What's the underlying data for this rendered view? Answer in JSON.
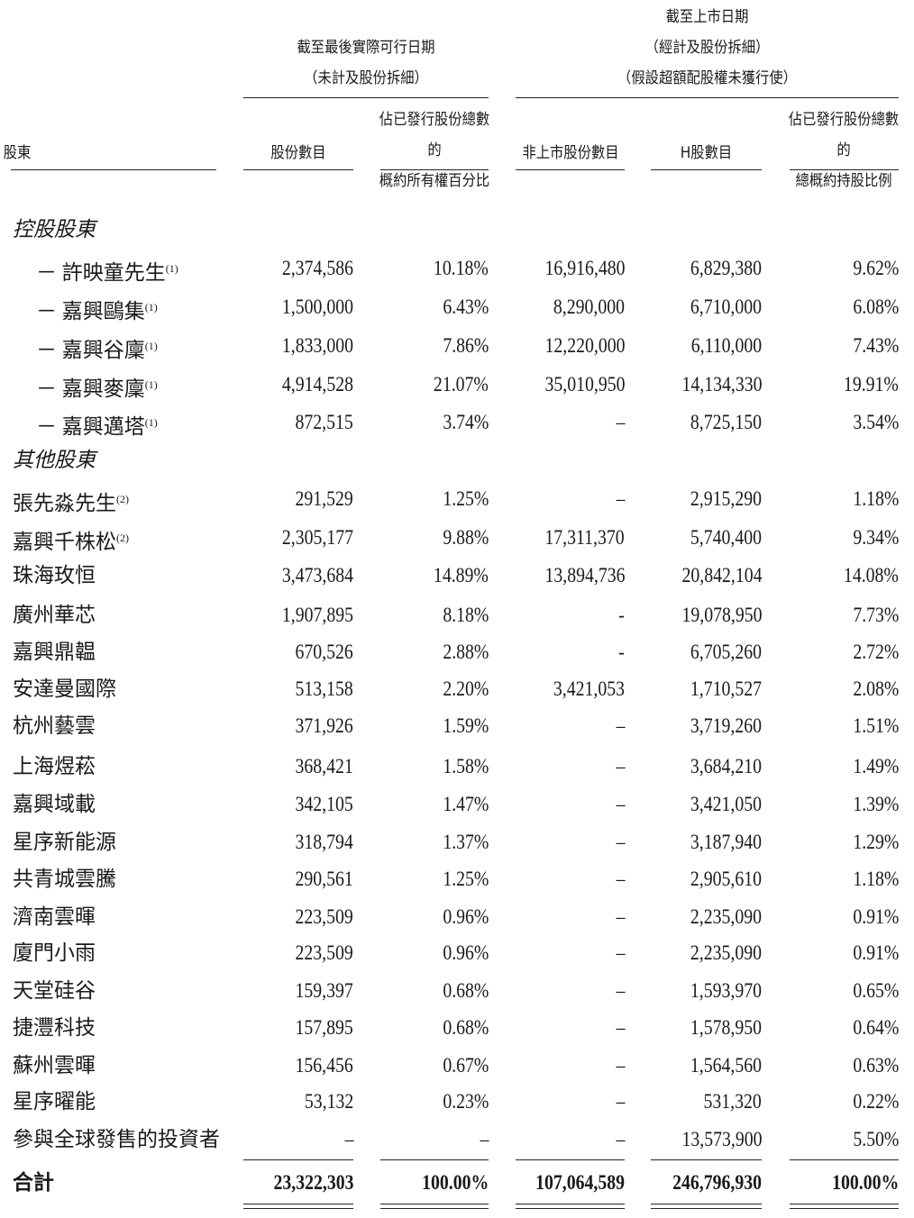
{
  "header": {
    "group1": {
      "line1": "截至最後實際可行日期",
      "line2": "（未計及股份拆細）"
    },
    "group2": {
      "line1": "截至上市日期",
      "line2": "（經計及股份拆細）",
      "line3": "（假設超額配股權未獲行使）"
    },
    "columns": {
      "shareholder": "股東",
      "c1": "股份數目",
      "c2a": "佔已發行股份總數的",
      "c2b": "概約所有權百分比",
      "c3": "非上市股份數目",
      "c4": "H股數目",
      "c5a": "佔已發行股份總數的",
      "c5b": "總概約持股比例"
    }
  },
  "rows": [
    {
      "type": "group",
      "name": "控股股東"
    },
    {
      "type": "sub",
      "name": "－ 許映童先生",
      "note": "(1)",
      "c1": "2,374,586",
      "c2": "10.18%",
      "c3": "16,916,480",
      "c4": "6,829,380",
      "c5": "9.62%"
    },
    {
      "type": "sub",
      "name": "－ 嘉興鷗集",
      "note": "(1)",
      "c1": "1,500,000",
      "c2": "6.43%",
      "c3": "8,290,000",
      "c4": "6,710,000",
      "c5": "6.08%"
    },
    {
      "type": "sub",
      "name": "－ 嘉興谷廩",
      "note": "(1)",
      "c1": "1,833,000",
      "c2": "7.86%",
      "c3": "12,220,000",
      "c4": "6,110,000",
      "c5": "7.43%"
    },
    {
      "type": "sub",
      "name": "－ 嘉興麥廩",
      "note": "(1)",
      "c1": "4,914,528",
      "c2": "21.07%",
      "c3": "35,010,950",
      "c4": "14,134,330",
      "c5": "19.91%"
    },
    {
      "type": "sub",
      "name": "－ 嘉興邁塔",
      "note": "(1)",
      "c1": "872,515",
      "c2": "3.74%",
      "c3": "–",
      "c4": "8,725,150",
      "c5": "3.54%"
    },
    {
      "type": "group",
      "name": "其他股東"
    },
    {
      "type": "item",
      "name": "張先淼先生",
      "note": "(2)",
      "c1": "291,529",
      "c2": "1.25%",
      "c3": "–",
      "c4": "2,915,290",
      "c5": "1.18%"
    },
    {
      "type": "item",
      "name": "嘉興千株松",
      "note": "(2)",
      "c1": "2,305,177",
      "c2": "9.88%",
      "c3": "17,311,370",
      "c4": "5,740,400",
      "c5": "9.34%"
    },
    {
      "type": "item",
      "name": "珠海玫恒",
      "c1": "3,473,684",
      "c2": "14.89%",
      "c3": "13,894,736",
      "c4": "20,842,104",
      "c5": "14.08%"
    },
    {
      "type": "item",
      "name": "廣州華芯",
      "c1": "1,907,895",
      "c2": "8.18%",
      "c3": "-",
      "c4": "19,078,950",
      "c5": "7.73%"
    },
    {
      "type": "item",
      "name": "嘉興鼎韞",
      "c1": "670,526",
      "c2": "2.88%",
      "c3": "-",
      "c4": "6,705,260",
      "c5": "2.72%"
    },
    {
      "type": "item",
      "name": "安達曼國際",
      "c1": "513,158",
      "c2": "2.20%",
      "c3": "3,421,053",
      "c4": "1,710,527",
      "c5": "2.08%"
    },
    {
      "type": "item",
      "name": "杭州藝雲",
      "c1": "371,926",
      "c2": "1.59%",
      "c3": "–",
      "c4": "3,719,260",
      "c5": "1.51%"
    },
    {
      "type": "item",
      "name": "上海煜菘",
      "c1": "368,421",
      "c2": "1.58%",
      "c3": "–",
      "c4": "3,684,210",
      "c5": "1.49%"
    },
    {
      "type": "item",
      "name": "嘉興域載",
      "c1": "342,105",
      "c2": "1.47%",
      "c3": "–",
      "c4": "3,421,050",
      "c5": "1.39%"
    },
    {
      "type": "item",
      "name": "星序新能源",
      "c1": "318,794",
      "c2": "1.37%",
      "c3": "–",
      "c4": "3,187,940",
      "c5": "1.29%"
    },
    {
      "type": "item",
      "name": "共青城雲騰",
      "c1": "290,561",
      "c2": "1.25%",
      "c3": "–",
      "c4": "2,905,610",
      "c5": "1.18%"
    },
    {
      "type": "item",
      "name": "濟南雲暉",
      "c1": "223,509",
      "c2": "0.96%",
      "c3": "–",
      "c4": "2,235,090",
      "c5": "0.91%"
    },
    {
      "type": "item",
      "name": "廈門小雨",
      "c1": "223,509",
      "c2": "0.96%",
      "c3": "–",
      "c4": "2,235,090",
      "c5": "0.91%"
    },
    {
      "type": "item",
      "name": "天堂硅谷",
      "c1": "159,397",
      "c2": "0.68%",
      "c3": "–",
      "c4": "1,593,970",
      "c5": "0.65%"
    },
    {
      "type": "item",
      "name": "捷灃科技",
      "c1": "157,895",
      "c2": "0.68%",
      "c3": "–",
      "c4": "1,578,950",
      "c5": "0.64%"
    },
    {
      "type": "item",
      "name": "蘇州雲暉",
      "c1": "156,456",
      "c2": "0.67%",
      "c3": "–",
      "c4": "1,564,560",
      "c5": "0.63%"
    },
    {
      "type": "item",
      "name": "星序曜能",
      "c1": "53,132",
      "c2": "0.23%",
      "c3": "–",
      "c4": "531,320",
      "c5": "0.22%"
    },
    {
      "type": "item",
      "name": "參與全球發售的投資者",
      "c1": "–",
      "c2": "–",
      "c3": "–",
      "c4": "13,573,900",
      "c5": "5.50%"
    }
  ],
  "total": {
    "name": "合計",
    "c1": "23,322,303",
    "c2": "100.00%",
    "c3": "107,064,589",
    "c4": "246,796,930",
    "c5": "100.00%"
  }
}
